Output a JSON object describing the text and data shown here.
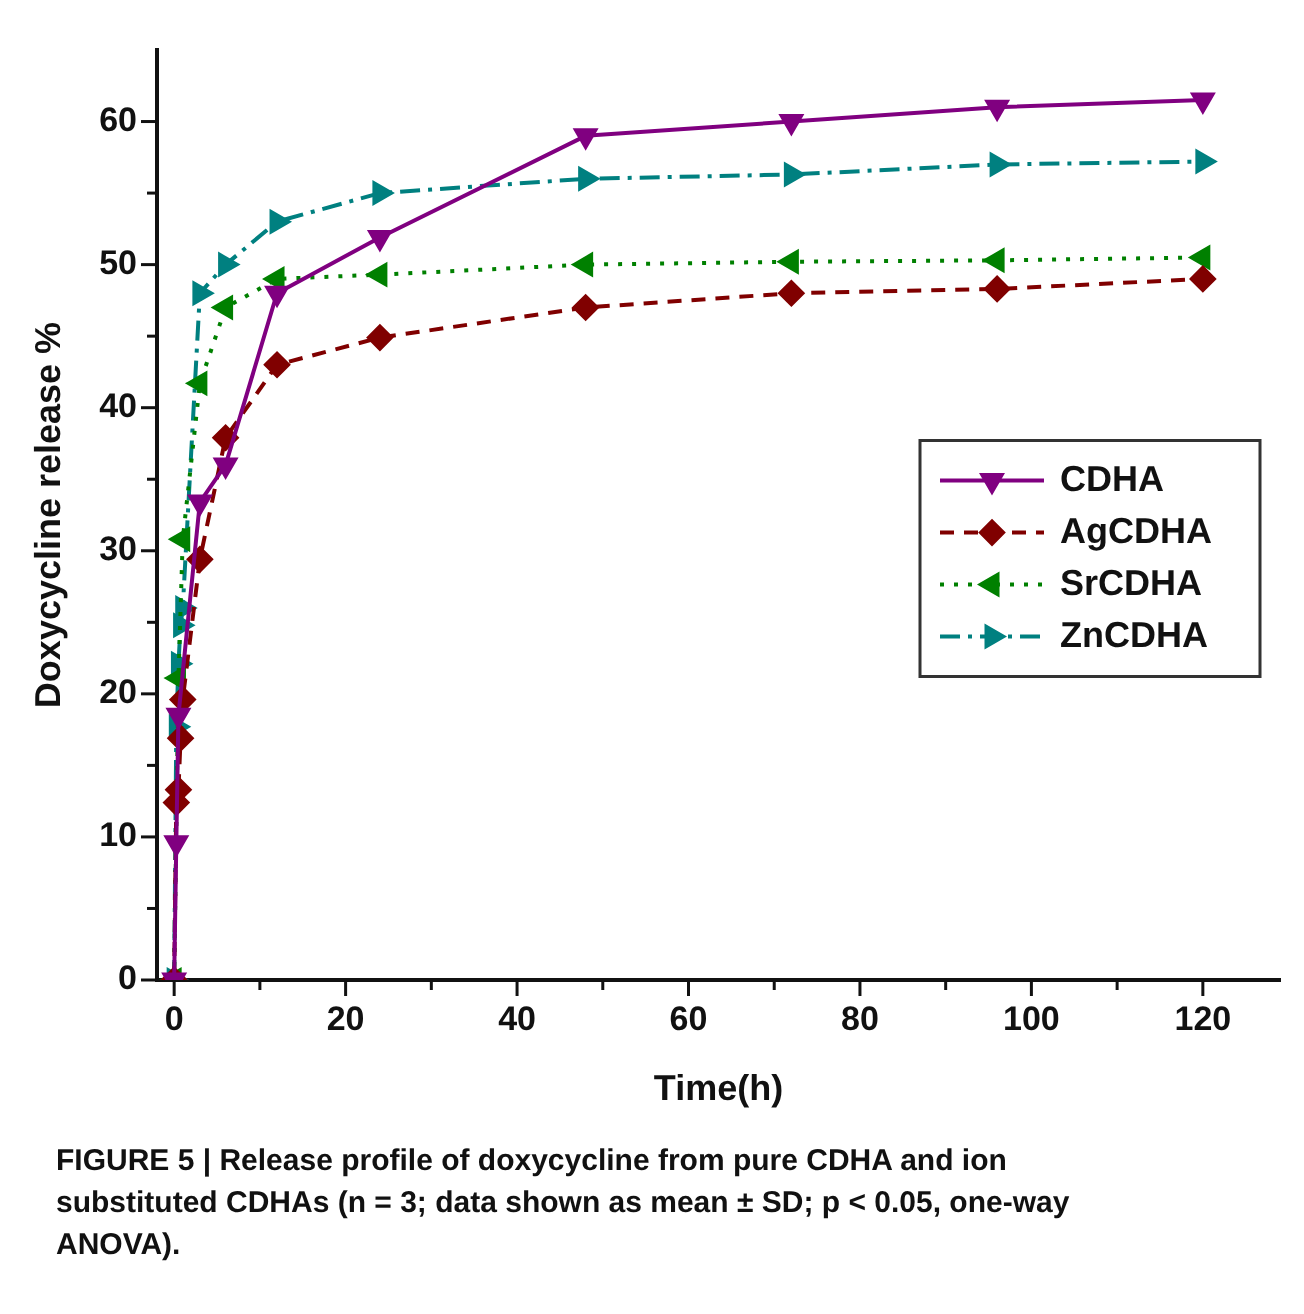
{
  "chart_data": {
    "type": "line",
    "xlabel": "Time(h)",
    "ylabel": "Doxycycline release %",
    "xlim": [
      -2,
      129
    ],
    "xticks": [
      0,
      {
        "value": 10,
        "label": null
      },
      20,
      {
        "value": 30,
        "label": null
      },
      40,
      {
        "value": 50,
        "label": null
      },
      60,
      {
        "value": 70,
        "label": null
      },
      80,
      {
        "value": 90,
        "label": null
      },
      100,
      {
        "value": 110,
        "label": null
      },
      120
    ],
    "ylim": [
      0,
      65
    ],
    "yticks": [
      0,
      {
        "value": 5,
        "label": null
      },
      10,
      {
        "value": 15,
        "label": null
      },
      20,
      {
        "value": 25,
        "label": null
      },
      30,
      {
        "value": 35,
        "label": null
      },
      40,
      {
        "value": 45,
        "label": null
      },
      50,
      {
        "value": 55,
        "label": null
      },
      60
    ],
    "grid": false,
    "legend": "right",
    "annotations": [
      "FIGURE 5 | Release profile of doxycycline from pure CDHA and ion substituted CDHAs (n = 3; data shown as mean ± SD; p < 0.05, one-way ANOVA)."
    ],
    "series": [
      {
        "name": "CDHA",
        "color": "#800080",
        "marker": "triangle-down",
        "line_style": "solid",
        "x": [
          0,
          0.25,
          0.5,
          3,
          6,
          12,
          24,
          48,
          72,
          96,
          120
        ],
        "values": [
          0,
          9.6,
          18.5,
          33.4,
          36,
          48,
          51.9,
          59,
          60,
          61,
          61.5
        ]
      },
      {
        "name": "AgCDHA",
        "color": "#800000",
        "marker": "diamond",
        "line_style": "dashed",
        "x": [
          0,
          0.25,
          0.5,
          0.75,
          1,
          3,
          6,
          12,
          24,
          48,
          72,
          96,
          120
        ],
        "values": [
          0,
          12.4,
          13.3,
          16.9,
          19.6,
          29.4,
          37.9,
          43,
          44.9,
          47,
          48,
          48.3,
          49
        ]
      },
      {
        "name": "SrCDHA",
        "color": "#008000",
        "marker": "triangle-left",
        "line_style": "dotted",
        "x": [
          0,
          0.5,
          1,
          3,
          6,
          12,
          24,
          48,
          72,
          96,
          120
        ],
        "values": [
          0,
          21.1,
          30.8,
          41.7,
          47,
          49,
          49.3,
          50,
          50.2,
          50.3,
          50.5
        ]
      },
      {
        "name": "ZnCDHA",
        "color": "#008080",
        "marker": "triangle-right",
        "line_style": "dashdot",
        "x": [
          0,
          0.25,
          0.5,
          0.75,
          1,
          3,
          6,
          12,
          24,
          48,
          72,
          96,
          120
        ],
        "values": [
          0,
          17.7,
          22.1,
          24.8,
          26,
          48,
          50,
          53,
          55,
          56,
          56.3,
          57,
          57.2
        ]
      }
    ]
  }
}
